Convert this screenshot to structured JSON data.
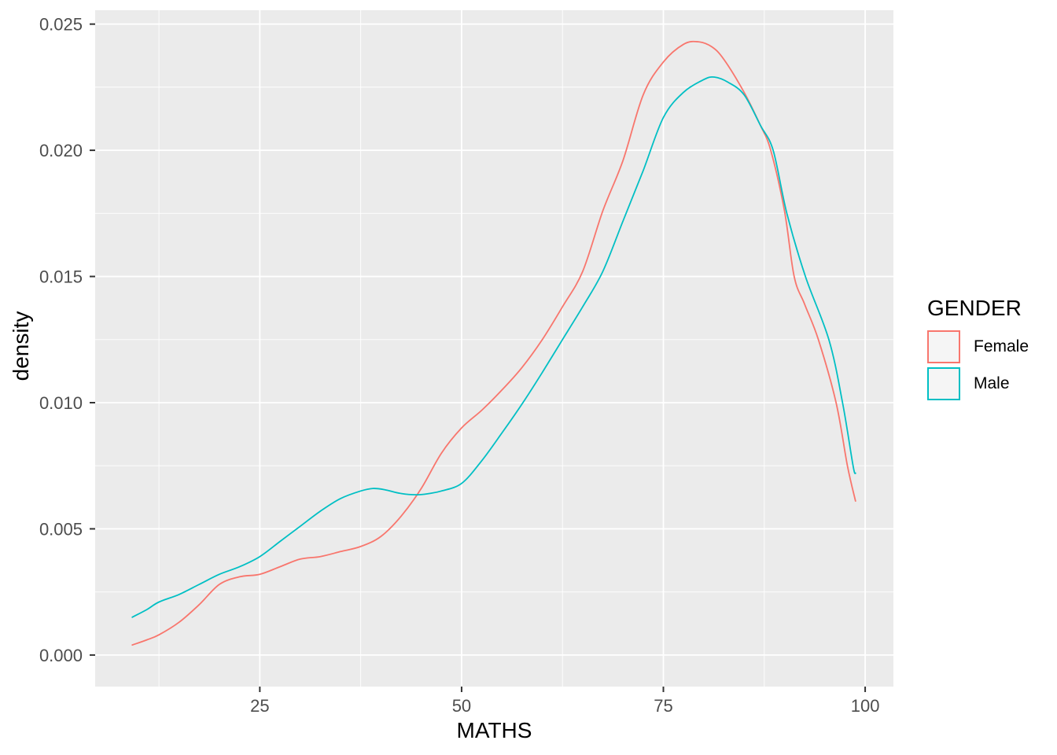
{
  "axes": {
    "x_title": "MATHS",
    "y_title": "density"
  },
  "legend": {
    "title": "GENDER",
    "key_fill": "#F5F5F5",
    "items": [
      {
        "label": "Female",
        "color": "#F8766D"
      },
      {
        "label": "Male",
        "color": "#00BFC4"
      }
    ]
  },
  "theme": {
    "background": "#FFFFFF",
    "panel_background": "#EBEBEB",
    "grid_color": "#FFFFFF",
    "tick_color": "#333333",
    "tick_label_color": "#4D4D4D",
    "axis_title_color": "#000000"
  },
  "chart_data": {
    "type": "line",
    "subtype": "kernel-density",
    "title": "",
    "xlabel": "MATHS",
    "ylabel": "density",
    "xlim": [
      4.6,
      103.5
    ],
    "ylim": [
      -0.00125,
      0.02555
    ],
    "grid": true,
    "legend_position": "right",
    "x_major_ticks": [
      25,
      50,
      75,
      100
    ],
    "x_tick_labels": [
      "25",
      "50",
      "75",
      "100"
    ],
    "x_minor_ticks": [
      12.5,
      37.5,
      62.5,
      87.5
    ],
    "y_major_ticks": [
      0,
      0.005,
      0.01,
      0.015,
      0.02,
      0.025
    ],
    "y_tick_labels": [
      "0.000",
      "0.005",
      "0.010",
      "0.015",
      "0.020",
      "0.025"
    ],
    "y_minor_ticks": [
      0.0025,
      0.0075,
      0.0125,
      0.0175,
      0.0225
    ],
    "series": [
      {
        "name": "Female",
        "color": "#F8766D",
        "points": [
          [
            9.2,
            0.0004
          ],
          [
            11,
            0.0006
          ],
          [
            12.5,
            0.0008
          ],
          [
            15,
            0.0013
          ],
          [
            17.5,
            0.002
          ],
          [
            20,
            0.0028
          ],
          [
            22.5,
            0.0031
          ],
          [
            25,
            0.0032
          ],
          [
            27.5,
            0.0035
          ],
          [
            30,
            0.0038
          ],
          [
            32.5,
            0.0039
          ],
          [
            35,
            0.0041
          ],
          [
            37.5,
            0.0043
          ],
          [
            40,
            0.0047
          ],
          [
            42.5,
            0.0055
          ],
          [
            45,
            0.0066
          ],
          [
            47.5,
            0.008
          ],
          [
            50,
            0.009
          ],
          [
            52.5,
            0.0097
          ],
          [
            55,
            0.0105
          ],
          [
            57.5,
            0.0114
          ],
          [
            60,
            0.0125
          ],
          [
            62.5,
            0.0138
          ],
          [
            65,
            0.0152
          ],
          [
            67.5,
            0.0176
          ],
          [
            70,
            0.0196
          ],
          [
            72.5,
            0.0222
          ],
          [
            75,
            0.0235
          ],
          [
            77.5,
            0.0242
          ],
          [
            79.3,
            0.0243
          ],
          [
            81,
            0.0241
          ],
          [
            82.5,
            0.0236
          ],
          [
            85,
            0.0223
          ],
          [
            87,
            0.021
          ],
          [
            88.3,
            0.02
          ],
          [
            90,
            0.0176
          ],
          [
            91.2,
            0.015
          ],
          [
            92.5,
            0.0139
          ],
          [
            94.2,
            0.0125
          ],
          [
            96.4,
            0.01
          ],
          [
            97.8,
            0.0075
          ],
          [
            98.8,
            0.0061
          ]
        ]
      },
      {
        "name": "Male",
        "color": "#00BFC4",
        "points": [
          [
            9.2,
            0.0015
          ],
          [
            11,
            0.0018
          ],
          [
            12.5,
            0.0021
          ],
          [
            15,
            0.0024
          ],
          [
            17.5,
            0.0028
          ],
          [
            20,
            0.0032
          ],
          [
            22.5,
            0.0035
          ],
          [
            25,
            0.0039
          ],
          [
            27.5,
            0.0045
          ],
          [
            30,
            0.0051
          ],
          [
            32.5,
            0.0057
          ],
          [
            35,
            0.0062
          ],
          [
            37.5,
            0.0065
          ],
          [
            39,
            0.0066
          ],
          [
            40.5,
            0.00655
          ],
          [
            42.5,
            0.0064
          ],
          [
            44.5,
            0.00635
          ],
          [
            46,
            0.0064
          ],
          [
            47.5,
            0.0065
          ],
          [
            50,
            0.0068
          ],
          [
            52.5,
            0.0077
          ],
          [
            55,
            0.0088
          ],
          [
            57.6,
            0.01
          ],
          [
            60,
            0.0112
          ],
          [
            62.5,
            0.0125
          ],
          [
            65,
            0.0138
          ],
          [
            67.5,
            0.0152
          ],
          [
            70,
            0.0172
          ],
          [
            72.5,
            0.0192
          ],
          [
            75,
            0.0213
          ],
          [
            77.5,
            0.0223
          ],
          [
            80,
            0.0228
          ],
          [
            81.3,
            0.0229
          ],
          [
            83,
            0.0227
          ],
          [
            85,
            0.0222
          ],
          [
            87,
            0.021
          ],
          [
            88.6,
            0.02
          ],
          [
            90.3,
            0.0175
          ],
          [
            92.6,
            0.015
          ],
          [
            95.5,
            0.0125
          ],
          [
            97.2,
            0.01
          ],
          [
            98.5,
            0.0075
          ],
          [
            98.8,
            0.0072
          ]
        ]
      }
    ]
  }
}
